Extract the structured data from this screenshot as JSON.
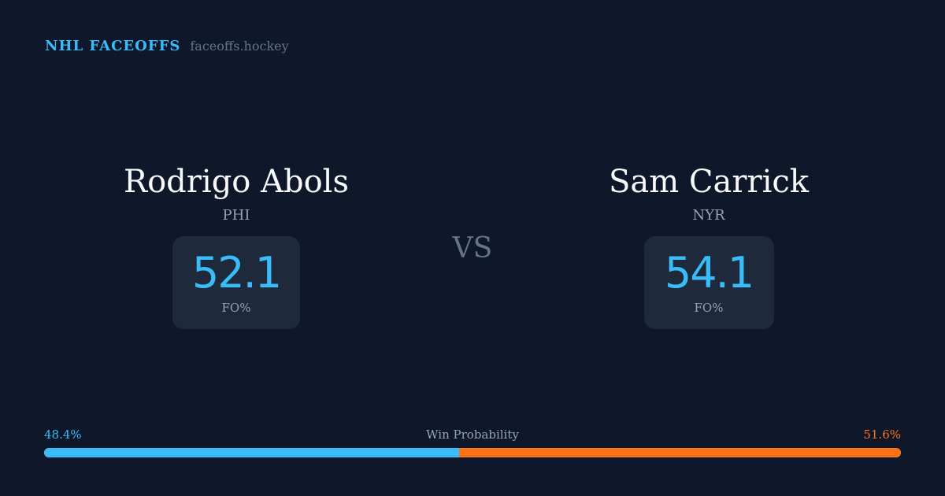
{
  "brand": {
    "name": "NHL FACEOFFS",
    "site": "faceoffs.hockey"
  },
  "players": [
    {
      "name": "Rodrigo Abols",
      "team": "PHI",
      "fo_pct": "52.1",
      "fo_label": "FO%"
    },
    {
      "name": "Sam Carrick",
      "team": "NYR",
      "fo_pct": "54.1",
      "fo_label": "FO%"
    }
  ],
  "vs": "VS",
  "win_probability": {
    "label": "Win Probability",
    "left": "48.4%",
    "right": "51.6%",
    "left_value": 48.4,
    "right_value": 51.6,
    "colors": {
      "left": "#38bdf8",
      "right": "#f97316"
    }
  }
}
